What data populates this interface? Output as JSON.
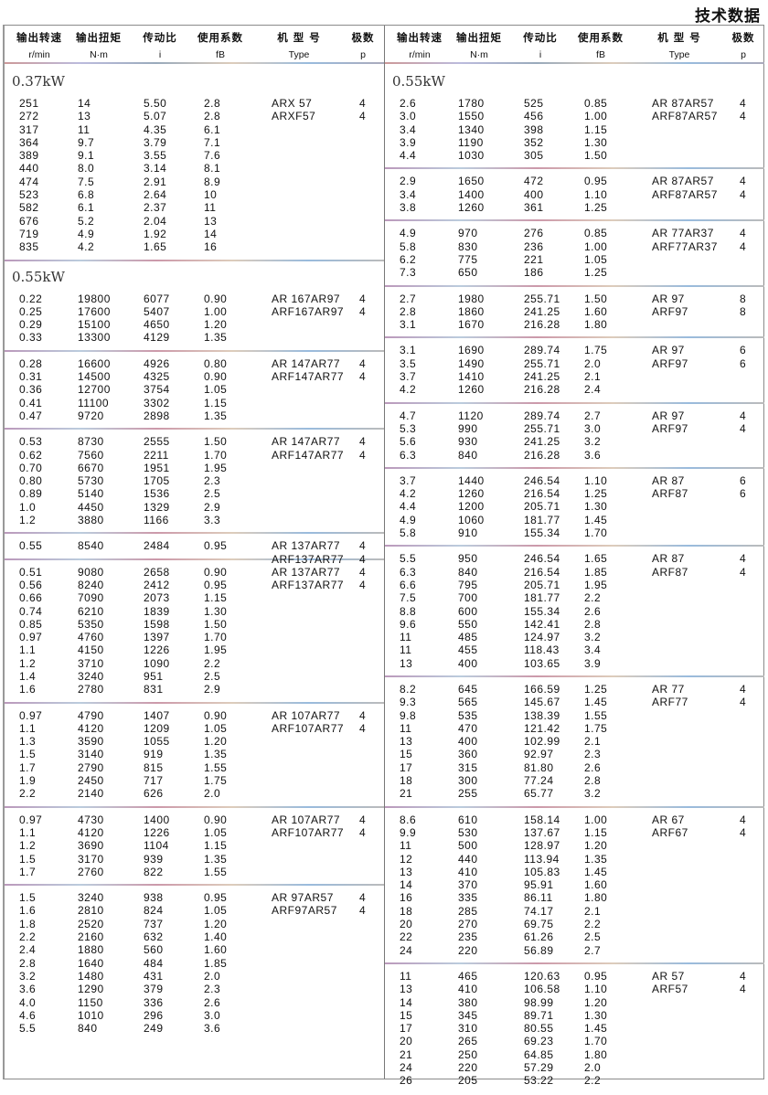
{
  "page_title": "技术数据",
  "headers": [
    {
      "cn": "输出转速",
      "en": "r/min"
    },
    {
      "cn": "输出扭矩",
      "en": "N·m"
    },
    {
      "cn": "传动比",
      "en": "i"
    },
    {
      "cn": "使用系数",
      "en": "fB"
    },
    {
      "cn": "机 型 号",
      "en": "Type"
    },
    {
      "cn": "极数",
      "en": "p"
    }
  ],
  "left": [
    {
      "power": "0.37kW",
      "groups": [
        {
          "types": [
            [
              "ARX 57",
              "4"
            ],
            [
              "ARXF57",
              "4"
            ]
          ],
          "rows": [
            [
              "251",
              "14",
              "5.50",
              "2.8"
            ],
            [
              "272",
              "13",
              "5.07",
              "2.8"
            ],
            [
              "317",
              "11",
              "4.35",
              "6.1"
            ],
            [
              "364",
              "9.7",
              "3.79",
              "7.1"
            ],
            [
              "389",
              "9.1",
              "3.55",
              "7.6"
            ],
            [
              "440",
              "8.0",
              "3.14",
              "8.1"
            ],
            [
              "474",
              "7.5",
              "2.91",
              "8.9"
            ],
            [
              "523",
              "6.8",
              "2.64",
              "10"
            ],
            [
              "582",
              "6.1",
              "2.37",
              "11"
            ],
            [
              "676",
              "5.2",
              "2.04",
              "13"
            ],
            [
              "719",
              "4.9",
              "1.92",
              "14"
            ],
            [
              "835",
              "4.2",
              "1.65",
              "16"
            ]
          ]
        }
      ]
    },
    {
      "power": "0.55kW",
      "groups": [
        {
          "types": [
            [
              "AR 167AR97",
              "4"
            ],
            [
              "ARF167AR97",
              "4"
            ]
          ],
          "rows": [
            [
              "0.22",
              "19800",
              "6077",
              "0.90"
            ],
            [
              "0.25",
              "17600",
              "5407",
              "1.00"
            ],
            [
              "0.29",
              "15100",
              "4650",
              "1.20"
            ],
            [
              "0.33",
              "13300",
              "4129",
              "1.35"
            ]
          ]
        },
        {
          "types": [
            [
              "AR 147AR77",
              "4"
            ],
            [
              "ARF147AR77",
              "4"
            ]
          ],
          "rows": [
            [
              "0.28",
              "16600",
              "4926",
              "0.80"
            ],
            [
              "0.31",
              "14500",
              "4325",
              "0.90"
            ],
            [
              "0.36",
              "12700",
              "3754",
              "1.05"
            ],
            [
              "0.41",
              "11100",
              "3302",
              "1.15"
            ],
            [
              "0.47",
              "9720",
              "2898",
              "1.35"
            ]
          ]
        },
        {
          "types": [
            [
              "AR 147AR77",
              "4"
            ],
            [
              "ARF147AR77",
              "4"
            ]
          ],
          "rows": [
            [
              "0.53",
              "8730",
              "2555",
              "1.50"
            ],
            [
              "0.62",
              "7560",
              "2211",
              "1.70"
            ],
            [
              "0.70",
              "6670",
              "1951",
              "1.95"
            ],
            [
              "0.80",
              "5730",
              "1705",
              "2.3"
            ],
            [
              "0.89",
              "5140",
              "1536",
              "2.5"
            ],
            [
              "1.0",
              "4450",
              "1329",
              "2.9"
            ],
            [
              "1.2",
              "3880",
              "1166",
              "3.3"
            ]
          ]
        },
        {
          "types": [
            [
              "AR 137AR77",
              "4"
            ],
            [
              "ARF137AR77",
              "4"
            ]
          ],
          "rows": [
            [
              "0.55",
              "8540",
              "2484",
              "0.95"
            ]
          ]
        },
        {
          "types": [
            [
              "AR 137AR77",
              "4"
            ],
            [
              "ARF137AR77",
              "4"
            ]
          ],
          "rows": [
            [
              "0.51",
              "9080",
              "2658",
              "0.90"
            ],
            [
              "0.56",
              "8240",
              "2412",
              "0.95"
            ],
            [
              "0.66",
              "7090",
              "2073",
              "1.15"
            ],
            [
              "0.74",
              "6210",
              "1839",
              "1.30"
            ],
            [
              "0.85",
              "5350",
              "1598",
              "1.50"
            ],
            [
              "0.97",
              "4760",
              "1397",
              "1.70"
            ],
            [
              "1.1",
              "4150",
              "1226",
              "1.95"
            ],
            [
              "1.2",
              "3710",
              "1090",
              "2.2"
            ],
            [
              "1.4",
              "3240",
              "951",
              "2.5"
            ],
            [
              "1.6",
              "2780",
              "831",
              "2.9"
            ]
          ]
        },
        {
          "types": [
            [
              "AR 107AR77",
              "4"
            ],
            [
              "ARF107AR77",
              "4"
            ]
          ],
          "rows": [
            [
              "0.97",
              "4790",
              "1407",
              "0.90"
            ],
            [
              "1.1",
              "4120",
              "1209",
              "1.05"
            ],
            [
              "1.3",
              "3590",
              "1055",
              "1.20"
            ],
            [
              "1.5",
              "3140",
              "919",
              "1.35"
            ],
            [
              "1.7",
              "2790",
              "815",
              "1.55"
            ],
            [
              "1.9",
              "2450",
              "717",
              "1.75"
            ],
            [
              "2.2",
              "2140",
              "626",
              "2.0"
            ]
          ]
        },
        {
          "types": [
            [
              "AR 107AR77",
              "4"
            ],
            [
              "ARF107AR77",
              "4"
            ]
          ],
          "rows": [
            [
              "0.97",
              "4730",
              "1400",
              "0.90"
            ],
            [
              "1.1",
              "4120",
              "1226",
              "1.05"
            ],
            [
              "1.2",
              "3690",
              "1104",
              "1.15"
            ],
            [
              "1.5",
              "3170",
              "939",
              "1.35"
            ],
            [
              "1.7",
              "2760",
              "822",
              "1.55"
            ]
          ]
        },
        {
          "types": [
            [
              "AR 97AR57",
              "4"
            ],
            [
              "ARF97AR57",
              "4"
            ]
          ],
          "rows": [
            [
              "1.5",
              "3240",
              "938",
              "0.95"
            ],
            [
              "1.6",
              "2810",
              "824",
              "1.05"
            ],
            [
              "1.8",
              "2520",
              "737",
              "1.20"
            ],
            [
              "2.2",
              "2160",
              "632",
              "1.40"
            ],
            [
              "2.4",
              "1880",
              "560",
              "1.60"
            ],
            [
              "2.8",
              "1640",
              "484",
              "1.85"
            ],
            [
              "3.2",
              "1480",
              "431",
              "2.0"
            ],
            [
              "3.6",
              "1290",
              "379",
              "2.3"
            ],
            [
              "4.0",
              "1150",
              "336",
              "2.6"
            ],
            [
              "4.6",
              "1010",
              "296",
              "3.0"
            ],
            [
              "5.5",
              "840",
              "249",
              "3.6"
            ]
          ]
        }
      ]
    }
  ],
  "right": [
    {
      "power": "0.55kW",
      "groups": [
        {
          "types": [
            [
              "AR 87AR57",
              "4"
            ],
            [
              "ARF87AR57",
              "4"
            ]
          ],
          "rows": [
            [
              "2.6",
              "1780",
              "525",
              "0.85"
            ],
            [
              "3.0",
              "1550",
              "456",
              "1.00"
            ],
            [
              "3.4",
              "1340",
              "398",
              "1.15"
            ],
            [
              "3.9",
              "1190",
              "352",
              "1.30"
            ],
            [
              "4.4",
              "1030",
              "305",
              "1.50"
            ]
          ]
        },
        {
          "types": [
            [
              "AR 87AR57",
              "4"
            ],
            [
              "ARF87AR57",
              "4"
            ]
          ],
          "rows": [
            [
              "2.9",
              "1650",
              "472",
              "0.95"
            ],
            [
              "3.4",
              "1400",
              "400",
              "1.10"
            ],
            [
              "3.8",
              "1260",
              "361",
              "1.25"
            ]
          ]
        },
        {
          "types": [
            [
              "AR 77AR37",
              "4"
            ],
            [
              "ARF77AR37",
              "4"
            ]
          ],
          "rows": [
            [
              "4.9",
              "970",
              "276",
              "0.85"
            ],
            [
              "5.8",
              "830",
              "236",
              "1.00"
            ],
            [
              "6.2",
              "775",
              "221",
              "1.05"
            ],
            [
              "7.3",
              "650",
              "186",
              "1.25"
            ]
          ]
        },
        {
          "types": [
            [
              "AR 97",
              "8"
            ],
            [
              "ARF97",
              "8"
            ]
          ],
          "rows": [
            [
              "2.7",
              "1980",
              "255.71",
              "1.50"
            ],
            [
              "2.8",
              "1860",
              "241.25",
              "1.60"
            ],
            [
              "3.1",
              "1670",
              "216.28",
              "1.80"
            ]
          ]
        },
        {
          "types": [
            [
              "AR 97",
              "6"
            ],
            [
              "ARF97",
              "6"
            ]
          ],
          "rows": [
            [
              "3.1",
              "1690",
              "289.74",
              "1.75"
            ],
            [
              "3.5",
              "1490",
              "255.71",
              "2.0"
            ],
            [
              "3.7",
              "1410",
              "241.25",
              "2.1"
            ],
            [
              "4.2",
              "1260",
              "216.28",
              "2.4"
            ]
          ]
        },
        {
          "types": [
            [
              "AR 97",
              "4"
            ],
            [
              "ARF97",
              "4"
            ]
          ],
          "rows": [
            [
              "4.7",
              "1120",
              "289.74",
              "2.7"
            ],
            [
              "5.3",
              "990",
              "255.71",
              "3.0"
            ],
            [
              "5.6",
              "930",
              "241.25",
              "3.2"
            ],
            [
              "6.3",
              "840",
              "216.28",
              "3.6"
            ]
          ]
        },
        {
          "types": [
            [
              "AR 87",
              "6"
            ],
            [
              "ARF87",
              "6"
            ]
          ],
          "rows": [
            [
              "3.7",
              "1440",
              "246.54",
              "1.10"
            ],
            [
              "4.2",
              "1260",
              "216.54",
              "1.25"
            ],
            [
              "4.4",
              "1200",
              "205.71",
              "1.30"
            ],
            [
              "4.9",
              "1060",
              "181.77",
              "1.45"
            ],
            [
              "5.8",
              "910",
              "155.34",
              "1.70"
            ]
          ]
        },
        {
          "types": [
            [
              "AR 87",
              "4"
            ],
            [
              "ARF87",
              "4"
            ]
          ],
          "rows": [
            [
              "5.5",
              "950",
              "246.54",
              "1.65"
            ],
            [
              "6.3",
              "840",
              "216.54",
              "1.85"
            ],
            [
              "6.6",
              "795",
              "205.71",
              "1.95"
            ],
            [
              "7.5",
              "700",
              "181.77",
              "2.2"
            ],
            [
              "8.8",
              "600",
              "155.34",
              "2.6"
            ],
            [
              "9.6",
              "550",
              "142.41",
              "2.8"
            ],
            [
              "11",
              "485",
              "124.97",
              "3.2"
            ],
            [
              "11",
              "455",
              "118.43",
              "3.4"
            ],
            [
              "13",
              "400",
              "103.65",
              "3.9"
            ]
          ]
        },
        {
          "types": [
            [
              "AR 77",
              "4"
            ],
            [
              "ARF77",
              "4"
            ]
          ],
          "rows": [
            [
              "8.2",
              "645",
              "166.59",
              "1.25"
            ],
            [
              "9.3",
              "565",
              "145.67",
              "1.45"
            ],
            [
              "9.8",
              "535",
              "138.39",
              "1.55"
            ],
            [
              "11",
              "470",
              "121.42",
              "1.75"
            ],
            [
              "13",
              "400",
              "102.99",
              "2.1"
            ],
            [
              "15",
              "360",
              "92.97",
              "2.3"
            ],
            [
              "17",
              "315",
              "81.80",
              "2.6"
            ],
            [
              "18",
              "300",
              "77.24",
              "2.8"
            ],
            [
              "21",
              "255",
              "65.77",
              "3.2"
            ]
          ]
        },
        {
          "types": [
            [
              "AR 67",
              "4"
            ],
            [
              "ARF67",
              "4"
            ]
          ],
          "rows": [
            [
              "8.6",
              "610",
              "158.14",
              "1.00"
            ],
            [
              "9.9",
              "530",
              "137.67",
              "1.15"
            ],
            [
              "11",
              "500",
              "128.97",
              "1.20"
            ],
            [
              "12",
              "440",
              "113.94",
              "1.35"
            ],
            [
              "13",
              "410",
              "105.83",
              "1.45"
            ],
            [
              "14",
              "370",
              "95.91",
              "1.60"
            ],
            [
              "16",
              "335",
              "86.11",
              "1.80"
            ],
            [
              "18",
              "285",
              "74.17",
              "2.1"
            ],
            [
              "20",
              "270",
              "69.75",
              "2.2"
            ],
            [
              "22",
              "235",
              "61.26",
              "2.5"
            ],
            [
              "24",
              "220",
              "56.89",
              "2.7"
            ]
          ]
        },
        {
          "types": [
            [
              "AR 57",
              "4"
            ],
            [
              "ARF57",
              "4"
            ]
          ],
          "rows": [
            [
              "11",
              "465",
              "120.63",
              "0.95"
            ],
            [
              "13",
              "410",
              "106.58",
              "1.10"
            ],
            [
              "14",
              "380",
              "98.99",
              "1.20"
            ],
            [
              "15",
              "345",
              "89.71",
              "1.30"
            ],
            [
              "17",
              "310",
              "80.55",
              "1.45"
            ],
            [
              "20",
              "265",
              "69.23",
              "1.70"
            ],
            [
              "21",
              "250",
              "64.85",
              "1.80"
            ],
            [
              "24",
              "220",
              "57.29",
              "2.0"
            ],
            [
              "26",
              "205",
              "53.22",
              "2.2"
            ]
          ]
        }
      ]
    }
  ]
}
